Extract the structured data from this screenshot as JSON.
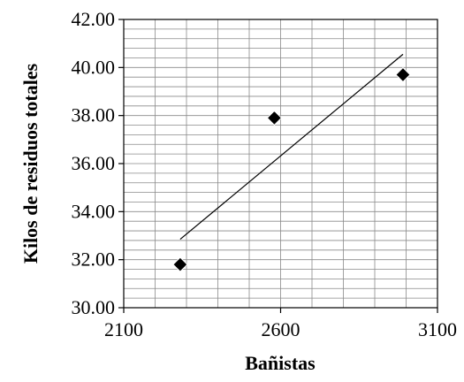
{
  "chart_data": {
    "type": "scatter",
    "xlabel": "Bañistas",
    "ylabel": "Kilos de residuos totales",
    "xlim": [
      2100,
      3100
    ],
    "ylim": [
      30.0,
      42.0
    ],
    "xticks": [
      2100,
      2600,
      3100
    ],
    "xtick_labels": [
      "2100",
      "2600",
      "3100"
    ],
    "yticks": [
      30,
      32,
      34,
      36,
      38,
      40,
      42
    ],
    "ytick_labels": [
      "30.00",
      "32.00",
      "34.00",
      "36.00",
      "38.00",
      "40.00",
      "42.00"
    ],
    "grid": true,
    "x_minor_step": 100,
    "y_minor_step": 0.4,
    "marker": "diamond",
    "series": [
      {
        "points": [
          {
            "x": 2280,
            "y": 31.8
          },
          {
            "x": 2580,
            "y": 37.9
          },
          {
            "x": 2990,
            "y": 39.7
          }
        ],
        "color": "#000000"
      }
    ],
    "trendline": {
      "x_start": 2280,
      "y_start": 32.85,
      "x_end": 2990,
      "y_end": 40.55,
      "color": "#000000"
    }
  }
}
